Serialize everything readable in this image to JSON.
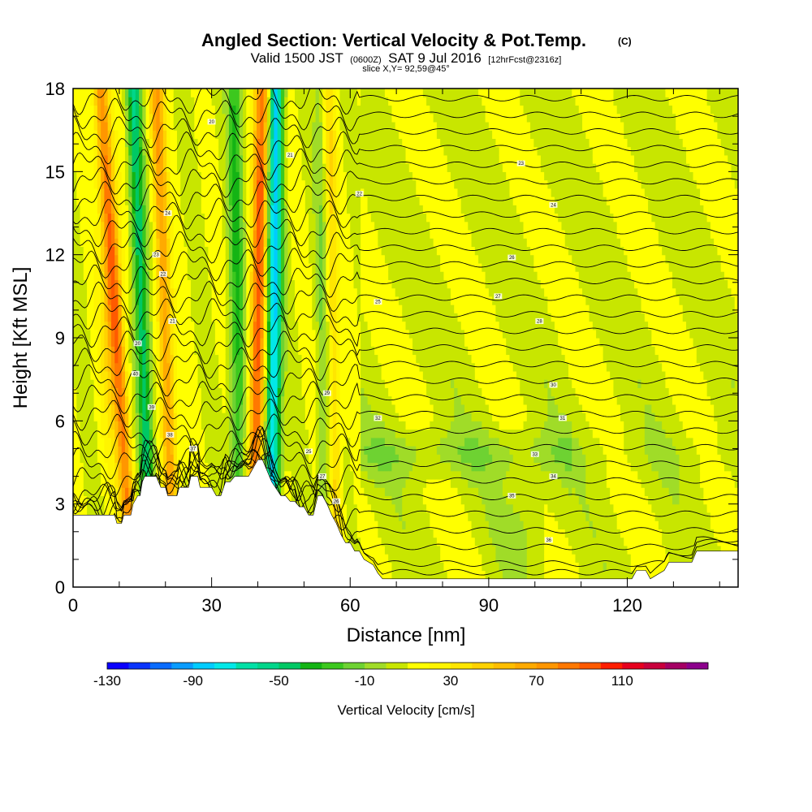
{
  "header": {
    "title": "Angled Section: Vertical Velocity & Pot.Temp.",
    "title_unit": "(C)",
    "valid_prefix": "Valid 1500 JST",
    "valid_utc": "(0600Z)",
    "valid_date": "SAT 9 Jul 2016",
    "forecast": "[12hrFcst@2316z]",
    "slice": "slice X,Y= 92,59@45°"
  },
  "chart_data": {
    "type": "heatmap",
    "xlabel": "Distance [nm]",
    "ylabel": "Height [Kft MSL]",
    "xlim": [
      0,
      144
    ],
    "ylim": [
      0,
      18
    ],
    "x_ticks": [
      0,
      30,
      60,
      90,
      120
    ],
    "x_tick_labels": [
      "0",
      "30",
      "60",
      "90",
      "120"
    ],
    "y_ticks": [
      0,
      3,
      6,
      9,
      12,
      15,
      18
    ],
    "y_tick_labels": [
      "0",
      "3",
      "6",
      "9",
      "12",
      "15",
      "18"
    ],
    "terrain": {
      "x": [
        0,
        9,
        9.5,
        10.5,
        11,
        12.5,
        13,
        14,
        14.5,
        15,
        15.5,
        18,
        19,
        20,
        20.5,
        22.5,
        23,
        25,
        25.5,
        27,
        27.5,
        30,
        31,
        32,
        33,
        34,
        35,
        38,
        39,
        40,
        41,
        42,
        43,
        45,
        46,
        47,
        48,
        49,
        50,
        51,
        52,
        53,
        54,
        55,
        56,
        57,
        58,
        59,
        60,
        61,
        62,
        63,
        64,
        65,
        66,
        67,
        68,
        70,
        80,
        90,
        100,
        110,
        114,
        121,
        122,
        124,
        125,
        128,
        129,
        134,
        135,
        144
      ],
      "height_kft": [
        2.6,
        2.6,
        2.3,
        2.3,
        2.6,
        2.6,
        3.0,
        3.3,
        3.3,
        3.8,
        4.0,
        4.0,
        3.6,
        3.6,
        3.3,
        3.3,
        3.6,
        3.6,
        4.0,
        4.0,
        3.6,
        3.6,
        3.3,
        3.3,
        3.8,
        3.8,
        4.0,
        4.0,
        4.3,
        4.6,
        4.6,
        4.2,
        3.8,
        3.3,
        3.3,
        3.1,
        3.1,
        2.9,
        2.9,
        2.6,
        2.6,
        3.3,
        3.3,
        3.0,
        2.6,
        2.3,
        1.9,
        1.6,
        1.6,
        1.3,
        1.3,
        1.0,
        0.9,
        0.8,
        0.5,
        0.3,
        0.3,
        0.3,
        0.3,
        0.3,
        0.3,
        0.3,
        0.3,
        0.3,
        0.6,
        0.6,
        0.3,
        0.6,
        0.9,
        0.9,
        1.3,
        1.3
      ]
    },
    "updraft_bands": [
      {
        "x_base": 13,
        "x_top": 6,
        "w_peak": 70
      },
      {
        "x_base": 22,
        "x_top": 18,
        "w_peak": 60
      },
      {
        "x_base": 39,
        "x_top": 41,
        "w_peak": 85
      },
      {
        "x_base": 57,
        "x_top": 55,
        "w_peak": 40
      }
    ],
    "downdraft_bands": [
      {
        "x_base": 17,
        "x_top": 13,
        "w_peak": -60
      },
      {
        "x_base": 36,
        "x_top": 35,
        "w_peak": -40
      },
      {
        "x_base": 43,
        "x_top": 44,
        "w_peak": -95
      },
      {
        "x_base": 55,
        "x_top": 54,
        "w_peak": -30
      }
    ],
    "contour_interval_C": 1,
    "contour_labels": [
      "20",
      "21",
      "22",
      "23",
      "24",
      "25",
      "26",
      "27",
      "28",
      "29",
      "30",
      "31",
      "32",
      "33",
      "34",
      "35",
      "36",
      "37",
      "38",
      "39",
      "40"
    ],
    "colorbar": {
      "title": "Vertical Velocity [cm/s]",
      "min": -130,
      "max": 150,
      "step": 10,
      "tick_values": [
        -130,
        -90,
        -50,
        -10,
        30,
        70,
        110
      ],
      "tick_labels": [
        "-130",
        "-90",
        "-50",
        "-10",
        "30",
        "70",
        "110"
      ],
      "colors": [
        "#0b00ff",
        "#0a34fd",
        "#0a6cff",
        "#0a9cff",
        "#00ccff",
        "#02e8e8",
        "#00e0a6",
        "#00d68a",
        "#00c864",
        "#14b414",
        "#3cc81e",
        "#6ed232",
        "#a0dc28",
        "#c8e600",
        "#ffff00",
        "#fff500",
        "#ffe600",
        "#ffd200",
        "#ffbe00",
        "#ffaa00",
        "#ff9600",
        "#ff7800",
        "#ff5a00",
        "#ff1e00",
        "#e6001e",
        "#c8003c",
        "#a50064",
        "#8c008c"
      ]
    },
    "grid": false,
    "legend": "bottom"
  }
}
